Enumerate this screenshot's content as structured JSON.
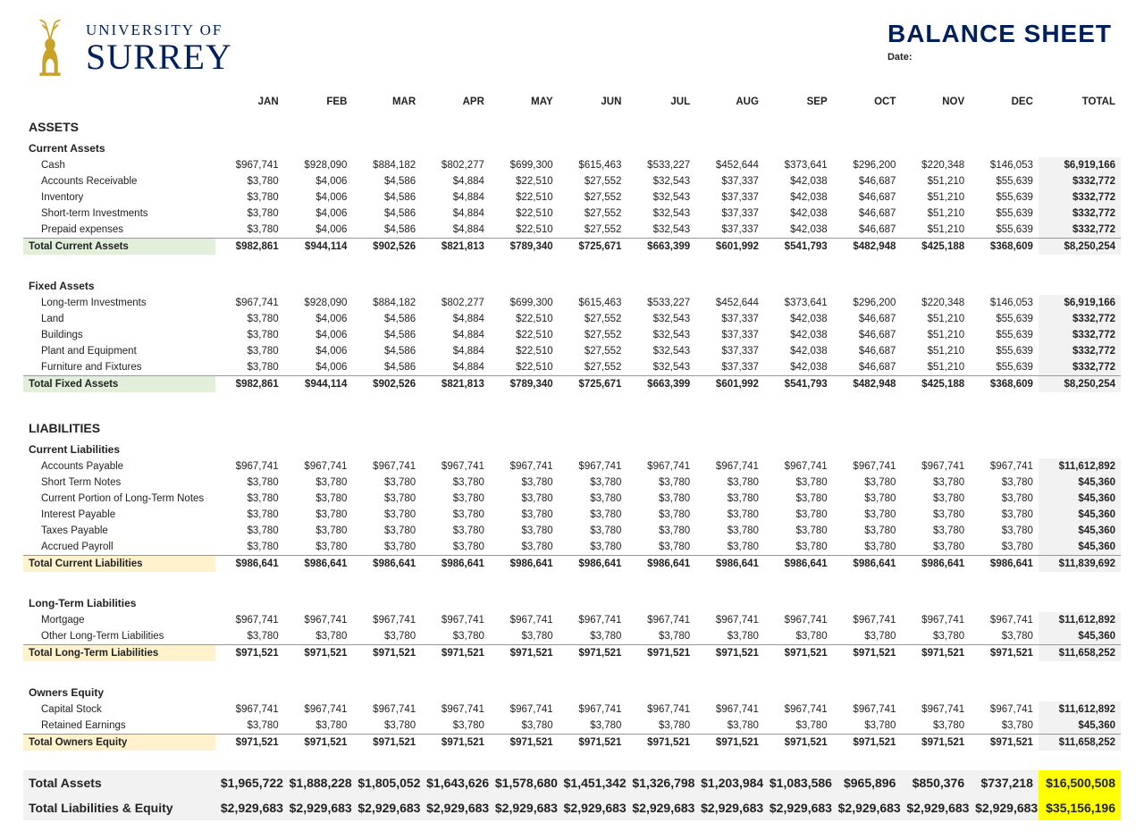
{
  "header": {
    "uni_top": "UNIVERSITY OF",
    "uni_bot": "SURREY",
    "title": "BALANCE SHEET",
    "date_label": "Date:"
  },
  "months": [
    "JAN",
    "FEB",
    "MAR",
    "APR",
    "MAY",
    "JUN",
    "JUL",
    "AUG",
    "SEP",
    "OCT",
    "NOV",
    "DEC"
  ],
  "total_label": "TOTAL",
  "sections": {
    "assets_label": "ASSETS",
    "current_assets_label": "Current Assets",
    "fixed_assets_label": "Fixed Assets",
    "liabilities_label": "LIABILITIES",
    "current_liab_label": "Current Liabilities",
    "long_term_liab_label": "Long-Term Liabilities",
    "owners_equity_label": "Owners Equity"
  },
  "row_a": [
    "$967,741",
    "$928,090",
    "$884,182",
    "$802,277",
    "$699,300",
    "$615,463",
    "$533,227",
    "$452,644",
    "$373,641",
    "$296,200",
    "$220,348",
    "$146,053"
  ],
  "row_b": [
    "$3,780",
    "$4,006",
    "$4,586",
    "$4,884",
    "$22,510",
    "$27,552",
    "$32,543",
    "$37,337",
    "$42,038",
    "$46,687",
    "$51,210",
    "$55,639"
  ],
  "row_c": [
    "$967,741",
    "$967,741",
    "$967,741",
    "$967,741",
    "$967,741",
    "$967,741",
    "$967,741",
    "$967,741",
    "$967,741",
    "$967,741",
    "$967,741",
    "$967,741"
  ],
  "row_d": [
    "$3,780",
    "$3,780",
    "$3,780",
    "$3,780",
    "$3,780",
    "$3,780",
    "$3,780",
    "$3,780",
    "$3,780",
    "$3,780",
    "$3,780",
    "$3,780"
  ],
  "totals": {
    "asset_sub": [
      "$982,861",
      "$944,114",
      "$902,526",
      "$821,813",
      "$789,340",
      "$725,671",
      "$663,399",
      "$601,992",
      "$541,793",
      "$482,948",
      "$425,188",
      "$368,609"
    ],
    "asset_sub_total": "$8,250,254",
    "row_a_total": "$6,919,166",
    "row_b_total": "$332,772",
    "row_c_total": "$11,612,892",
    "row_d_total": "$45,360",
    "cur_liab": [
      "$986,641",
      "$986,641",
      "$986,641",
      "$986,641",
      "$986,641",
      "$986,641",
      "$986,641",
      "$986,641",
      "$986,641",
      "$986,641",
      "$986,641",
      "$986,641"
    ],
    "cur_liab_total": "$11,839,692",
    "lt_liab": [
      "$971,521",
      "$971,521",
      "$971,521",
      "$971,521",
      "$971,521",
      "$971,521",
      "$971,521",
      "$971,521",
      "$971,521",
      "$971,521",
      "$971,521",
      "$971,521"
    ],
    "lt_liab_total": "$11,658,252",
    "total_assets": [
      "$1,965,722",
      "$1,888,228",
      "$1,805,052",
      "$1,643,626",
      "$1,578,680",
      "$1,451,342",
      "$1,326,798",
      "$1,203,984",
      "$1,083,586",
      "$965,896",
      "$850,376",
      "$737,218"
    ],
    "total_assets_total": "$16,500,508",
    "total_le": [
      "$2,929,683",
      "$2,929,683",
      "$2,929,683",
      "$2,929,683",
      "$2,929,683",
      "$2,929,683",
      "$2,929,683",
      "$2,929,683",
      "$2,929,683",
      "$2,929,683",
      "$2,929,683",
      "$2,929,683"
    ],
    "total_le_total": "$35,156,196"
  },
  "labels": {
    "cash": "Cash",
    "ar": "Accounts Receivable",
    "inv": "Inventory",
    "sti": "Short-term Investments",
    "pre": "Prepaid expenses",
    "tca": "Total Current Assets",
    "lti": "Long-term Investments",
    "land": "Land",
    "bld": "Buildings",
    "pe": "Plant and Equipment",
    "ff": "Furniture and Fixtures",
    "tfa": "Total Fixed Assets",
    "ap": "Accounts Payable",
    "stn": "Short Term Notes",
    "cpltn": "Current Portion of Long-Term Notes",
    "ip": "Interest Payable",
    "tp": "Taxes Payable",
    "apay": "Accrued Payroll",
    "tcl": "Total Current Liabilities",
    "mort": "Mortgage",
    "oltl": "Other Long-Term Liabilities",
    "tltl": "Total Long-Term Liabilities",
    "cs": "Capital Stock",
    "re": "Retained Earnings",
    "toe": "Total Owners Equity",
    "ta": "Total Assets",
    "tle": "Total Liabilities & Equity"
  }
}
